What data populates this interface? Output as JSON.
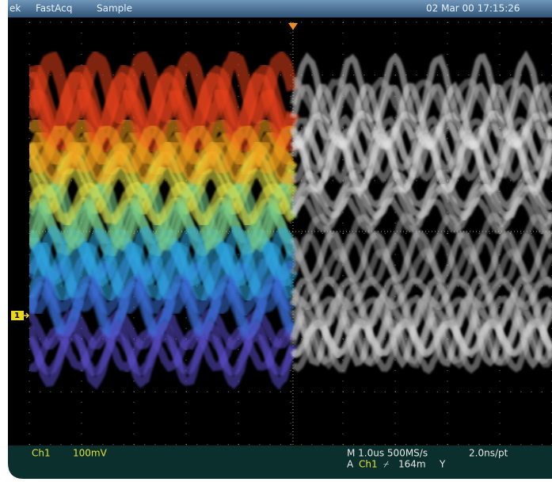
{
  "header": {
    "brand": "ek",
    "mode": "FastAcq",
    "acquisition": "Sample",
    "timestamp": "02 Mar 00 17:15:26"
  },
  "display": {
    "channel_marker": "1"
  },
  "footer": {
    "channel": "Ch1",
    "scale": "100mV",
    "timebase": "M 1.0us 500MS/s",
    "resolution": "2.0ns/pt",
    "trigger_source_label": "A",
    "trigger_channel": "Ch1",
    "trigger_slope": "⌿",
    "trigger_level": "164m",
    "trigger_mode": "Y"
  }
}
